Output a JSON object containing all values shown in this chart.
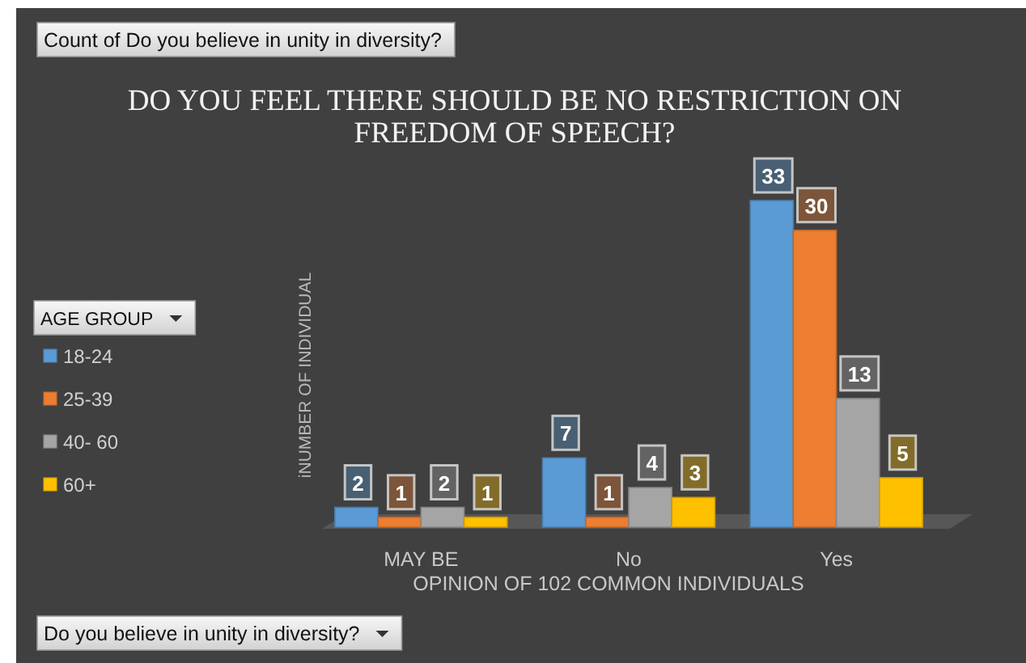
{
  "chart_data": {
    "type": "bar",
    "title": "DO YOU FEEL THERE SHOULD BE NO RESTRICTION ON FREEDOM OF SPEECH?",
    "xlabel": "OPINION OF 102 COMMON INDIVIDUALS",
    "ylabel": "iNUMBER OF INDIVIDUAL",
    "legend_title": "AGE GROUP",
    "annotations": [
      "Count of Do you believe in unity in diversity?",
      "Do you believe in unity in diversity?"
    ],
    "categories": [
      "MAY BE",
      "No",
      "Yes"
    ],
    "series": [
      {
        "name": "18-24",
        "color": "#5b9bd5",
        "values": [
          2,
          7,
          33
        ]
      },
      {
        "name": "25-39",
        "color": "#ed7d31",
        "values": [
          1,
          1,
          30
        ]
      },
      {
        "name": "40- 60",
        "color": "#a5a5a5",
        "values": [
          2,
          4,
          13
        ]
      },
      {
        "name": "60+",
        "color": "#ffc000",
        "values": [
          1,
          3,
          5
        ]
      }
    ],
    "data_labels": true,
    "legend": "left",
    "tick_labels": "x"
  }
}
